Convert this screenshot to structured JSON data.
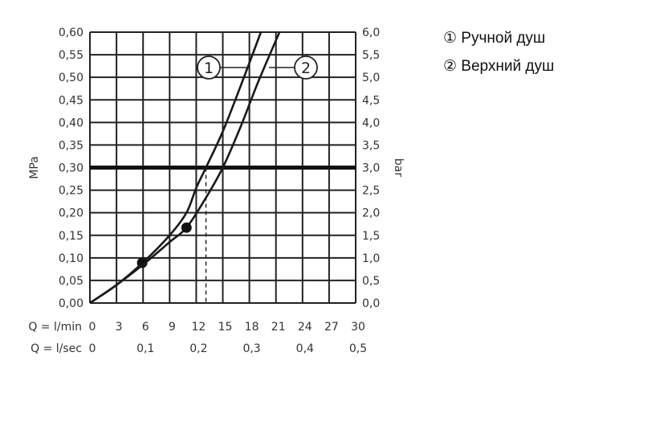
{
  "chart_data": {
    "type": "line",
    "xlabel_rows": [
      {
        "label": "Q = l/min",
        "ticks": [
          "0",
          "3",
          "6",
          "9",
          "12",
          "15",
          "18",
          "21",
          "24",
          "27",
          "30"
        ],
        "values": [
          0,
          3,
          6,
          9,
          12,
          15,
          18,
          21,
          24,
          27,
          30
        ]
      },
      {
        "label": "Q = l/sec",
        "ticks": [
          "0",
          "0,1",
          "0,2",
          "0,3",
          "0,4",
          "0,5"
        ],
        "values": [
          0,
          6,
          12,
          18,
          24,
          30
        ]
      }
    ],
    "ylabel_left": "MPa",
    "ylabel_right": "bar",
    "xlim": [
      0,
      30
    ],
    "ylim": [
      0,
      0.6
    ],
    "yticks_left": [
      "0,00",
      "0,05",
      "0,10",
      "0,15",
      "0,20",
      "0,25",
      "0,30",
      "0,35",
      "0,40",
      "0,45",
      "0,50",
      "0,55",
      "0,60"
    ],
    "yticks_right": [
      "0,0",
      "0,5",
      "1,0",
      "1,5",
      "2,0",
      "2,5",
      "3,0",
      "3,5",
      "4,0",
      "4,5",
      "5,0",
      "5,5",
      "6,0"
    ],
    "grid": true,
    "reference_line": {
      "y": 0.3
    },
    "series": [
      {
        "name": "Ручной душ",
        "marker_label": "1",
        "x": [
          0,
          3,
          6,
          9,
          10.9,
          12,
          13.1,
          15,
          17,
          19.3
        ],
        "y": [
          0,
          0.04,
          0.09,
          0.15,
          0.2,
          0.255,
          0.3,
          0.38,
          0.48,
          0.6
        ],
        "point": {
          "x": 5.9,
          "y": 0.089
        },
        "crossing_q": 13.1
      },
      {
        "name": "Верхний душ",
        "marker_label": "2",
        "x": [
          0,
          3,
          6,
          9,
          10.9,
          13,
          15,
          17,
          19,
          21.4
        ],
        "y": [
          0,
          0.04,
          0.085,
          0.135,
          0.167,
          0.23,
          0.3,
          0.39,
          0.49,
          0.6
        ],
        "point": {
          "x": 10.9,
          "y": 0.167
        },
        "crossing_q": 15.0
      }
    ],
    "legend": {
      "placement": "right",
      "entries": [
        "① Ручной душ",
        "② Верхний душ"
      ]
    }
  }
}
